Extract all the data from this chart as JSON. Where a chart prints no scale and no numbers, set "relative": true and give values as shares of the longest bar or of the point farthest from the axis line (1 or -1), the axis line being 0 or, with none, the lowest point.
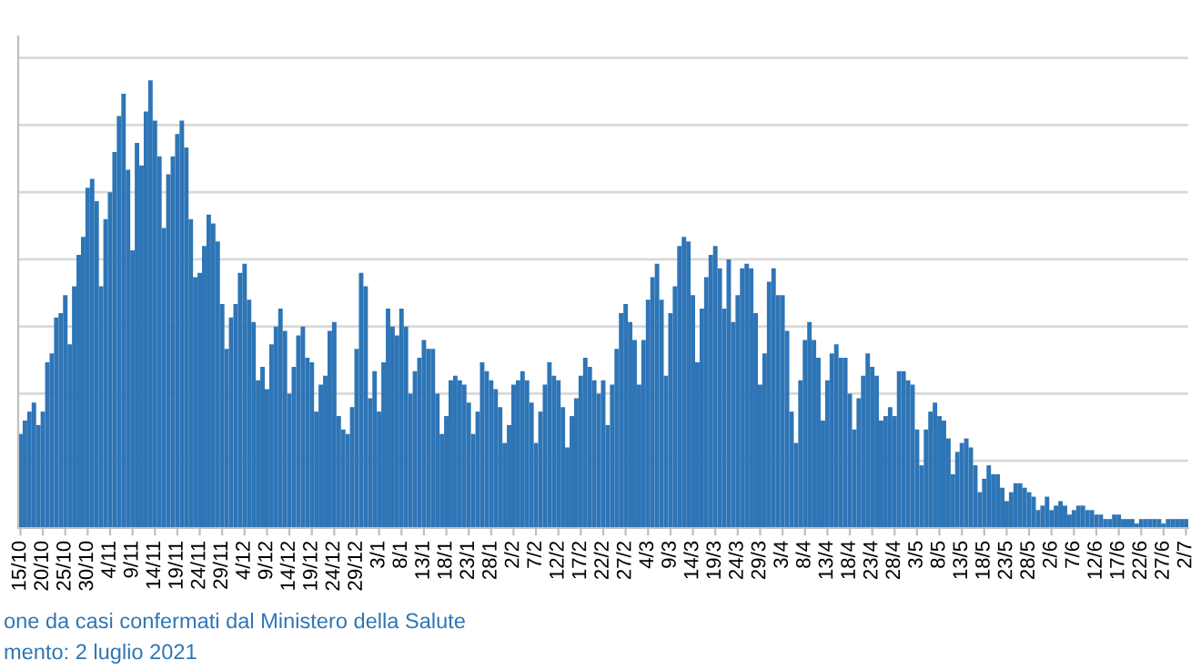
{
  "chart_data": {
    "type": "bar",
    "relative": true,
    "grid": "y",
    "tick_labels": "x",
    "color": "#2e75b6",
    "categories": [
      "15/10",
      null,
      null,
      null,
      null,
      "20/10",
      null,
      null,
      null,
      null,
      "25/10",
      null,
      null,
      null,
      null,
      "30/10",
      null,
      null,
      null,
      null,
      "4/11",
      null,
      null,
      null,
      null,
      "9/11",
      null,
      null,
      null,
      null,
      "14/11",
      null,
      null,
      null,
      null,
      "19/11",
      null,
      null,
      null,
      null,
      "24/11",
      null,
      null,
      null,
      null,
      "29/11",
      null,
      null,
      null,
      null,
      "4/12",
      null,
      null,
      null,
      null,
      "9/12",
      null,
      null,
      null,
      null,
      "14/12",
      null,
      null,
      null,
      null,
      "19/12",
      null,
      null,
      null,
      null,
      "24/12",
      null,
      null,
      null,
      null,
      "29/12",
      null,
      null,
      null,
      null,
      "3/1",
      null,
      null,
      null,
      null,
      "8/1",
      null,
      null,
      null,
      null,
      "13/1",
      null,
      null,
      null,
      null,
      "18/1",
      null,
      null,
      null,
      null,
      "23/1",
      null,
      null,
      null,
      null,
      "28/1",
      null,
      null,
      null,
      null,
      "2/2",
      null,
      null,
      null,
      null,
      "7/2",
      null,
      null,
      null,
      null,
      "12/2",
      null,
      null,
      null,
      null,
      "17/2",
      null,
      null,
      null,
      null,
      "22/2",
      null,
      null,
      null,
      null,
      "27/2",
      null,
      null,
      null,
      null,
      "4/3",
      null,
      null,
      null,
      null,
      "9/3",
      null,
      null,
      null,
      null,
      "14/3",
      null,
      null,
      null,
      null,
      "19/3",
      null,
      null,
      null,
      null,
      "24/3",
      null,
      null,
      null,
      null,
      "29/3",
      null,
      null,
      null,
      null,
      "3/4",
      null,
      null,
      null,
      null,
      "8/4",
      null,
      null,
      null,
      null,
      "13/4",
      null,
      null,
      null,
      null,
      "18/4",
      null,
      null,
      null,
      null,
      "23/4",
      null,
      null,
      null,
      null,
      "28/4",
      null,
      null,
      null,
      null,
      "3/5",
      null,
      null,
      null,
      null,
      "8/5",
      null,
      null,
      null,
      null,
      "13/5",
      null,
      null,
      null,
      null,
      "18/5",
      null,
      null,
      null,
      null,
      "23/5",
      null,
      null,
      null,
      null,
      "28/5",
      null,
      null,
      null,
      null,
      "2/6",
      null,
      null,
      null,
      null,
      "7/6",
      null,
      null,
      null,
      null,
      "12/6",
      null,
      null,
      null,
      null,
      "17/6",
      null,
      null,
      null,
      null,
      "22/6",
      null,
      null,
      null,
      null,
      "27/6",
      null,
      null,
      null,
      null,
      "2/7"
    ],
    "values": [
      0.21,
      0.24,
      0.26,
      0.28,
      0.23,
      0.26,
      0.37,
      0.39,
      0.47,
      0.48,
      0.52,
      0.41,
      0.54,
      0.61,
      0.65,
      0.76,
      0.78,
      0.73,
      0.54,
      0.69,
      0.75,
      0.84,
      0.92,
      0.97,
      0.8,
      0.62,
      0.86,
      0.81,
      0.93,
      1.0,
      0.91,
      0.83,
      0.67,
      0.79,
      0.83,
      0.88,
      0.91,
      0.85,
      0.69,
      0.56,
      0.57,
      0.63,
      0.7,
      0.68,
      0.64,
      0.5,
      0.4,
      0.47,
      0.5,
      0.57,
      0.59,
      0.51,
      0.46,
      0.33,
      0.36,
      0.31,
      0.41,
      0.45,
      0.49,
      0.44,
      0.3,
      0.36,
      0.43,
      0.45,
      0.38,
      0.37,
      0.26,
      0.32,
      0.34,
      0.44,
      0.46,
      0.25,
      0.22,
      0.21,
      0.27,
      0.4,
      0.57,
      0.54,
      0.29,
      0.35,
      0.26,
      0.37,
      0.49,
      0.45,
      0.43,
      0.49,
      0.45,
      0.3,
      0.35,
      0.38,
      0.42,
      0.4,
      0.4,
      0.3,
      0.21,
      0.25,
      0.33,
      0.34,
      0.33,
      0.32,
      0.28,
      0.21,
      0.26,
      0.37,
      0.35,
      0.33,
      0.31,
      0.27,
      0.19,
      0.23,
      0.32,
      0.33,
      0.35,
      0.33,
      0.28,
      0.19,
      0.26,
      0.32,
      0.37,
      0.34,
      0.33,
      0.27,
      0.18,
      0.25,
      0.29,
      0.34,
      0.38,
      0.36,
      0.33,
      0.3,
      0.33,
      0.23,
      0.32,
      0.4,
      0.48,
      0.5,
      0.46,
      0.42,
      0.32,
      0.42,
      0.51,
      0.56,
      0.59,
      0.51,
      0.34,
      0.48,
      0.54,
      0.63,
      0.65,
      0.64,
      0.52,
      0.37,
      0.49,
      0.56,
      0.61,
      0.63,
      0.58,
      0.49,
      0.6,
      0.46,
      0.52,
      0.58,
      0.59,
      0.58,
      0.48,
      0.32,
      0.39,
      0.55,
      0.58,
      0.52,
      0.52,
      0.44,
      0.26,
      0.19,
      0.33,
      0.42,
      0.46,
      0.42,
      0.38,
      0.24,
      0.33,
      0.39,
      0.41,
      0.38,
      0.38,
      0.3,
      0.22,
      0.29,
      0.34,
      0.39,
      0.36,
      0.34,
      0.24,
      0.25,
      0.27,
      0.25,
      0.35,
      0.35,
      0.33,
      0.32,
      0.22,
      0.14,
      0.22,
      0.26,
      0.28,
      0.25,
      0.24,
      0.2,
      0.12,
      0.17,
      0.19,
      0.2,
      0.18,
      0.14,
      0.08,
      0.11,
      0.14,
      0.12,
      0.12,
      0.09,
      0.06,
      0.08,
      0.1,
      0.1,
      0.09,
      0.08,
      0.07,
      0.04,
      0.05,
      0.07,
      0.04,
      0.05,
      0.06,
      0.05,
      0.03,
      0.04,
      0.05,
      0.05,
      0.04,
      0.04,
      0.03,
      0.03,
      0.02,
      0.02,
      0.03,
      0.03,
      0.02,
      0.02,
      0.02,
      0.01,
      0.02,
      0.02,
      0.02,
      0.02,
      0.02,
      0.01,
      0.02,
      0.02,
      0.02,
      0.02,
      0.02
    ],
    "annotations": [
      "one da casi confermati dal Ministero della Salute",
      "mento: 2 luglio 2021"
    ]
  }
}
